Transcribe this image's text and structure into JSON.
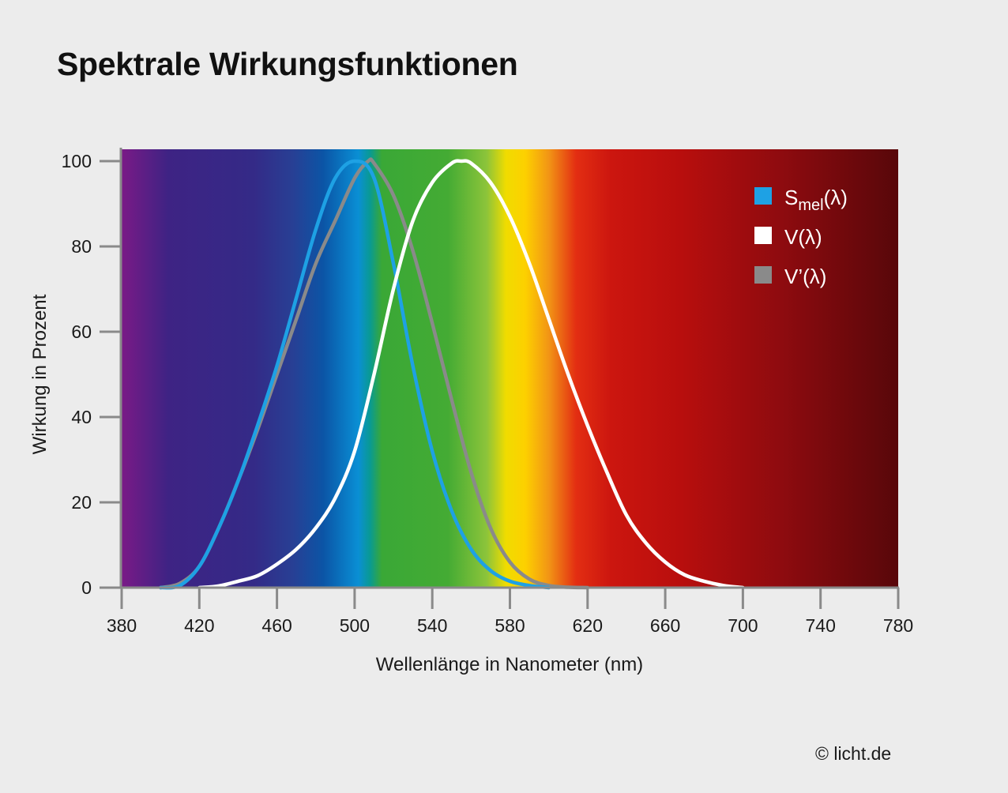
{
  "chart_data": {
    "type": "line",
    "title": "Spektrale Wirkungsfunktionen",
    "xlabel": "Wellenlänge in Nanometer (nm)",
    "ylabel": "Wirkung in Prozent",
    "xlim": [
      380,
      780
    ],
    "ylim": [
      0,
      100
    ],
    "x_ticks": [
      380,
      420,
      460,
      500,
      540,
      580,
      620,
      660,
      700,
      740,
      780
    ],
    "y_ticks": [
      0,
      20,
      40,
      60,
      80,
      100
    ],
    "grid": false,
    "legend_position": "top-right",
    "background": "visible spectrum gradient",
    "series": [
      {
        "name": "S_mel(λ)",
        "legend_main": "S",
        "legend_sub": "mel",
        "legend_suffix": "(λ)",
        "color": "#1ea1e4",
        "x": [
          400,
          410,
          420,
          430,
          440,
          450,
          460,
          470,
          480,
          490,
          500,
          510,
          520,
          530,
          540,
          550,
          560,
          570,
          580,
          590,
          600
        ],
        "y": [
          0,
          0.5,
          5,
          14,
          25,
          38,
          52,
          68,
          84,
          96,
          100,
          96,
          76,
          52,
          32,
          18,
          9,
          4,
          1.5,
          0.5,
          0
        ]
      },
      {
        "name": "V(λ)",
        "legend_main": "V(λ)",
        "color": "#ffffff",
        "x": [
          420,
          430,
          440,
          450,
          460,
          470,
          480,
          490,
          500,
          510,
          520,
          530,
          540,
          550,
          555,
          560,
          570,
          580,
          590,
          600,
          610,
          620,
          630,
          640,
          650,
          660,
          670,
          680,
          690,
          700
        ],
        "y": [
          0,
          0.4,
          1.5,
          2.8,
          5.5,
          9,
          14,
          21,
          32,
          50,
          70,
          86,
          95,
          99.5,
          100,
          99.5,
          95,
          87,
          76,
          63,
          50,
          38,
          27,
          17,
          10.5,
          6,
          3,
          1.5,
          0.5,
          0
        ]
      },
      {
        "name": "V'(λ)",
        "legend_main": "V’(λ)",
        "color": "#8a8a8a",
        "x": [
          400,
          410,
          420,
          430,
          440,
          450,
          460,
          470,
          480,
          490,
          500,
          507,
          510,
          520,
          530,
          540,
          550,
          560,
          570,
          580,
          590,
          600,
          610,
          620
        ],
        "y": [
          0,
          1,
          5,
          14,
          25,
          37,
          50,
          63,
          76,
          86,
          96,
          100,
          99.5,
          92,
          79,
          62,
          44,
          27,
          14,
          6,
          2,
          0.5,
          0.1,
          0
        ]
      }
    ]
  },
  "footer": {
    "copyright": "© licht.de"
  }
}
